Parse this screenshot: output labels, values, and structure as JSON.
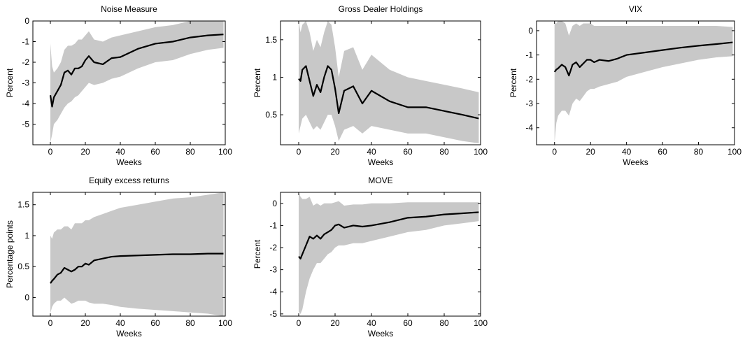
{
  "chart_data": [
    {
      "type": "line",
      "title": "Noise Measure",
      "xlabel": "Weeks",
      "ylabel": "Percent",
      "x": [
        0,
        1,
        2,
        4,
        6,
        8,
        10,
        12,
        14,
        16,
        18,
        20,
        22,
        25,
        30,
        35,
        40,
        50,
        60,
        70,
        80,
        90,
        99
      ],
      "values": [
        -3.6,
        -4.15,
        -3.7,
        -3.4,
        -3.1,
        -2.5,
        -2.4,
        -2.6,
        -2.3,
        -2.3,
        -2.2,
        -1.9,
        -1.7,
        -2.0,
        -2.1,
        -1.8,
        -1.75,
        -1.35,
        -1.1,
        -1.0,
        -0.8,
        -0.7,
        -0.65
      ],
      "band": {
        "lower": [
          -5.9,
          -5.5,
          -5.0,
          -4.8,
          -4.5,
          -4.2,
          -4.0,
          -3.9,
          -3.7,
          -3.6,
          -3.4,
          -3.2,
          -3.0,
          -3.1,
          -3.0,
          -2.8,
          -2.7,
          -2.3,
          -2.0,
          -1.9,
          -1.6,
          -1.4,
          -1.3
        ],
        "upper": [
          -1.1,
          -2.2,
          -2.5,
          -2.3,
          -2.0,
          -1.4,
          -1.2,
          -1.2,
          -1.1,
          -0.9,
          -0.9,
          -0.7,
          -0.5,
          -0.9,
          -1.0,
          -0.8,
          -0.7,
          -0.5,
          -0.3,
          -0.2,
          0,
          0,
          0
        ]
      },
      "color": "#000000",
      "band_color": "#c8c8c8",
      "xlim": [
        -10,
        100
      ],
      "xticks": [
        0,
        20,
        40,
        60,
        80,
        100
      ],
      "ylim": [
        -6,
        0
      ],
      "yticks": [
        -5,
        -4,
        -3,
        -2,
        -1,
        0
      ]
    },
    {
      "type": "line",
      "title": "Gross Dealer Holdings",
      "xlabel": "Weeks",
      "ylabel": "Percent",
      "x": [
        0,
        1,
        2,
        4,
        6,
        8,
        10,
        12,
        14,
        16,
        18,
        20,
        22,
        25,
        30,
        35,
        40,
        50,
        60,
        70,
        80,
        90,
        99
      ],
      "values": [
        0.98,
        0.95,
        1.1,
        1.15,
        0.95,
        0.75,
        0.9,
        0.8,
        1.0,
        1.15,
        1.1,
        0.85,
        0.52,
        0.82,
        0.88,
        0.65,
        0.82,
        0.68,
        0.6,
        0.6,
        0.55,
        0.5,
        0.45
      ],
      "band": {
        "lower": [
          0.25,
          0.35,
          0.45,
          0.5,
          0.4,
          0.3,
          0.35,
          0.3,
          0.4,
          0.5,
          0.5,
          0.35,
          0.15,
          0.3,
          0.35,
          0.25,
          0.35,
          0.3,
          0.25,
          0.25,
          0.2,
          0.15,
          0.12
        ],
        "upper": [
          1.75,
          1.6,
          1.7,
          1.75,
          1.6,
          1.35,
          1.5,
          1.4,
          1.6,
          1.75,
          1.7,
          1.4,
          1.0,
          1.35,
          1.4,
          1.1,
          1.3,
          1.1,
          1.0,
          0.95,
          0.9,
          0.85,
          0.8
        ]
      },
      "color": "#000000",
      "band_color": "#c8c8c8",
      "xlim": [
        -10,
        100
      ],
      "xticks": [
        0,
        20,
        40,
        60,
        80,
        100
      ],
      "ylim": [
        0.1,
        1.75
      ],
      "yticks": [
        0.5,
        1,
        1.5
      ]
    },
    {
      "type": "line",
      "title": "VIX",
      "xlabel": "Weeks",
      "ylabel": "Percent",
      "x": [
        0,
        1,
        2,
        4,
        6,
        8,
        10,
        12,
        14,
        16,
        18,
        20,
        22,
        25,
        30,
        35,
        40,
        50,
        60,
        70,
        80,
        90,
        99
      ],
      "values": [
        -1.7,
        -1.6,
        -1.55,
        -1.4,
        -1.5,
        -1.85,
        -1.4,
        -1.3,
        -1.5,
        -1.35,
        -1.2,
        -1.2,
        -1.3,
        -1.2,
        -1.25,
        -1.15,
        -1.0,
        -0.9,
        -0.8,
        -0.7,
        -0.62,
        -0.55,
        -0.48
      ],
      "band": {
        "lower": [
          -4.6,
          -3.8,
          -3.5,
          -3.3,
          -3.3,
          -3.5,
          -3.0,
          -2.8,
          -2.9,
          -2.7,
          -2.5,
          -2.4,
          -2.4,
          -2.3,
          -2.2,
          -2.1,
          -1.9,
          -1.7,
          -1.5,
          -1.35,
          -1.2,
          -1.1,
          -1.05
        ],
        "upper": [
          0.3,
          0.3,
          0.4,
          0.4,
          0.3,
          -0.2,
          0.2,
          0.3,
          0.2,
          0.3,
          0.3,
          0.3,
          0.2,
          0.2,
          0.2,
          0.2,
          0.2,
          0.2,
          0.2,
          0.2,
          0.2,
          0.2,
          0.15
        ]
      },
      "color": "#000000",
      "band_color": "#c8c8c8",
      "xlim": [
        -10,
        100
      ],
      "xticks": [
        0,
        20,
        40,
        60,
        80,
        100
      ],
      "ylim": [
        -4.7,
        0.4
      ],
      "yticks": [
        -4,
        -3,
        -2,
        -1,
        0
      ]
    },
    {
      "type": "line",
      "title": "Equity excess returns",
      "xlabel": "Weeks",
      "ylabel": "Percentage points",
      "x": [
        0,
        1,
        2,
        4,
        6,
        8,
        10,
        12,
        14,
        16,
        18,
        20,
        22,
        25,
        30,
        35,
        40,
        50,
        60,
        70,
        80,
        90,
        99
      ],
      "values": [
        0.23,
        0.27,
        0.3,
        0.37,
        0.4,
        0.48,
        0.45,
        0.42,
        0.45,
        0.5,
        0.5,
        0.55,
        0.53,
        0.6,
        0.63,
        0.66,
        0.67,
        0.68,
        0.69,
        0.7,
        0.7,
        0.71,
        0.71
      ],
      "band": {
        "lower": [
          -0.25,
          -0.15,
          -0.1,
          -0.05,
          -0.05,
          0,
          -0.05,
          -0.1,
          -0.08,
          -0.05,
          -0.05,
          -0.05,
          -0.08,
          -0.1,
          -0.1,
          -0.12,
          -0.15,
          -0.18,
          -0.2,
          -0.22,
          -0.24,
          -0.26,
          -0.3
        ],
        "upper": [
          1.0,
          0.95,
          1.05,
          1.1,
          1.1,
          1.15,
          1.15,
          1.1,
          1.2,
          1.2,
          1.2,
          1.25,
          1.25,
          1.3,
          1.35,
          1.4,
          1.45,
          1.5,
          1.55,
          1.6,
          1.62,
          1.66,
          1.7
        ]
      },
      "color": "#000000",
      "band_color": "#c8c8c8",
      "xlim": [
        -10,
        100
      ],
      "xticks": [
        0,
        20,
        40,
        60,
        80,
        100
      ],
      "ylim": [
        -0.3,
        1.7
      ],
      "yticks": [
        0,
        0.5,
        1,
        1.5
      ]
    },
    {
      "type": "line",
      "title": "MOVE",
      "xlabel": "Weeks",
      "ylabel": "Percent",
      "x": [
        0,
        1,
        2,
        4,
        6,
        8,
        10,
        12,
        14,
        16,
        18,
        20,
        22,
        25,
        30,
        35,
        40,
        50,
        60,
        70,
        80,
        90,
        99
      ],
      "values": [
        -2.4,
        -2.5,
        -2.3,
        -1.9,
        -1.5,
        -1.6,
        -1.45,
        -1.6,
        -1.4,
        -1.3,
        -1.2,
        -1.0,
        -0.95,
        -1.1,
        -1.0,
        -1.05,
        -1.0,
        -0.85,
        -0.65,
        -0.6,
        -0.5,
        -0.45,
        -0.4
      ],
      "band": {
        "lower": [
          -4.9,
          -5.0,
          -4.8,
          -4.0,
          -3.4,
          -3.0,
          -2.7,
          -2.7,
          -2.5,
          -2.3,
          -2.2,
          -2.0,
          -1.9,
          -1.9,
          -1.8,
          -1.8,
          -1.7,
          -1.5,
          -1.3,
          -1.2,
          -1.0,
          -0.9,
          -0.8
        ],
        "upper": [
          0.5,
          0.3,
          0.2,
          0.2,
          0.3,
          -0.1,
          0,
          -0.1,
          0,
          0,
          0,
          0.05,
          0.1,
          -0.1,
          -0.05,
          -0.05,
          0,
          0,
          0.05,
          0.05,
          0.05,
          0.05,
          0.05
        ]
      },
      "color": "#000000",
      "band_color": "#c8c8c8",
      "xlim": [
        -10,
        100
      ],
      "xticks": [
        0,
        20,
        40,
        60,
        80,
        100
      ],
      "ylim": [
        -5.1,
        0.5
      ],
      "yticks": [
        -5,
        -4,
        -3,
        -2,
        -1,
        0
      ]
    }
  ]
}
